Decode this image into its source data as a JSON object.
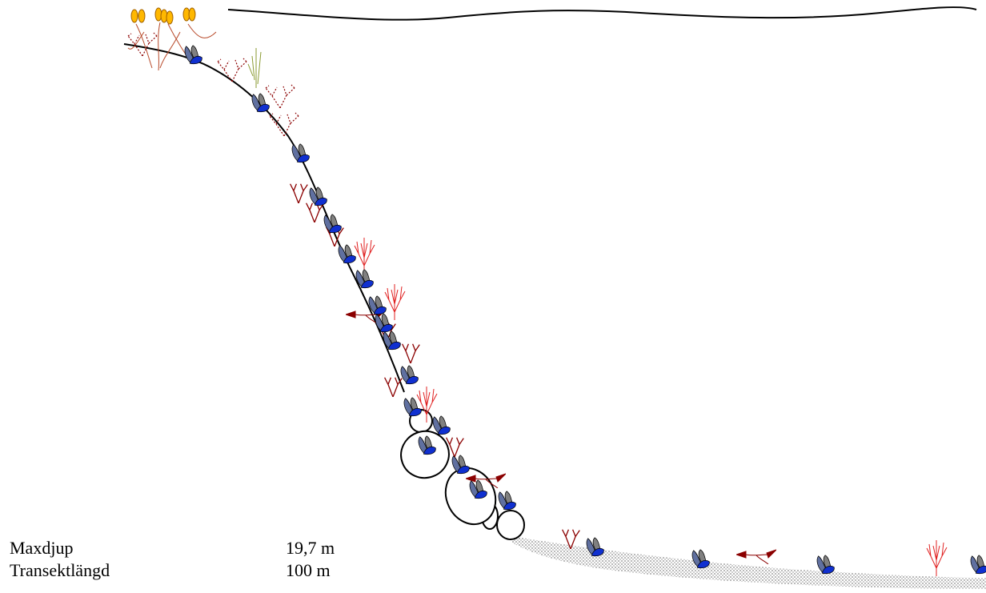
{
  "info": {
    "rows": [
      {
        "label": "Maxdjup",
        "value": "19,7 m"
      },
      {
        "label": "Transektlängd",
        "value": "100 m"
      }
    ]
  }
}
